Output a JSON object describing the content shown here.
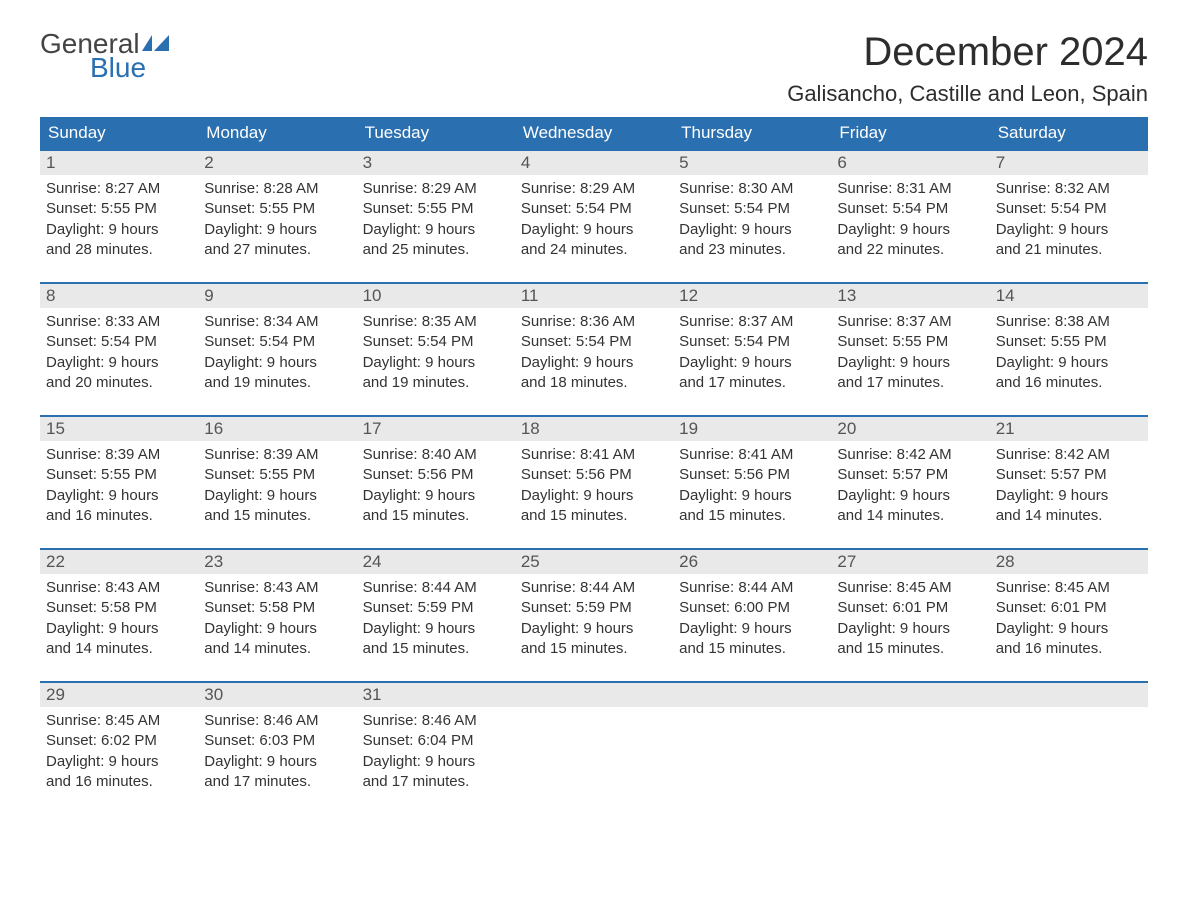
{
  "logo": {
    "word1": "General",
    "word2": "Blue"
  },
  "title": "December 2024",
  "location": "Galisancho, Castille and Leon, Spain",
  "colors": {
    "header_bg": "#2a6fb0",
    "header_text": "#ffffff",
    "daynum_bg": "#e9e9e9",
    "rule": "#2a6fb0",
    "text": "#333333",
    "logo_gray": "#444444",
    "logo_blue": "#2a6fb0"
  },
  "weekdays": [
    "Sunday",
    "Monday",
    "Tuesday",
    "Wednesday",
    "Thursday",
    "Friday",
    "Saturday"
  ],
  "label_sunrise": "Sunrise: ",
  "label_sunset": "Sunset: ",
  "label_daylight_prefix": "Daylight: ",
  "weeks": [
    [
      {
        "n": "1",
        "sunrise": "8:27 AM",
        "sunset": "5:55 PM",
        "dl1": "9 hours",
        "dl2": "and 28 minutes."
      },
      {
        "n": "2",
        "sunrise": "8:28 AM",
        "sunset": "5:55 PM",
        "dl1": "9 hours",
        "dl2": "and 27 minutes."
      },
      {
        "n": "3",
        "sunrise": "8:29 AM",
        "sunset": "5:55 PM",
        "dl1": "9 hours",
        "dl2": "and 25 minutes."
      },
      {
        "n": "4",
        "sunrise": "8:29 AM",
        "sunset": "5:54 PM",
        "dl1": "9 hours",
        "dl2": "and 24 minutes."
      },
      {
        "n": "5",
        "sunrise": "8:30 AM",
        "sunset": "5:54 PM",
        "dl1": "9 hours",
        "dl2": "and 23 minutes."
      },
      {
        "n": "6",
        "sunrise": "8:31 AM",
        "sunset": "5:54 PM",
        "dl1": "9 hours",
        "dl2": "and 22 minutes."
      },
      {
        "n": "7",
        "sunrise": "8:32 AM",
        "sunset": "5:54 PM",
        "dl1": "9 hours",
        "dl2": "and 21 minutes."
      }
    ],
    [
      {
        "n": "8",
        "sunrise": "8:33 AM",
        "sunset": "5:54 PM",
        "dl1": "9 hours",
        "dl2": "and 20 minutes."
      },
      {
        "n": "9",
        "sunrise": "8:34 AM",
        "sunset": "5:54 PM",
        "dl1": "9 hours",
        "dl2": "and 19 minutes."
      },
      {
        "n": "10",
        "sunrise": "8:35 AM",
        "sunset": "5:54 PM",
        "dl1": "9 hours",
        "dl2": "and 19 minutes."
      },
      {
        "n": "11",
        "sunrise": "8:36 AM",
        "sunset": "5:54 PM",
        "dl1": "9 hours",
        "dl2": "and 18 minutes."
      },
      {
        "n": "12",
        "sunrise": "8:37 AM",
        "sunset": "5:54 PM",
        "dl1": "9 hours",
        "dl2": "and 17 minutes."
      },
      {
        "n": "13",
        "sunrise": "8:37 AM",
        "sunset": "5:55 PM",
        "dl1": "9 hours",
        "dl2": "and 17 minutes."
      },
      {
        "n": "14",
        "sunrise": "8:38 AM",
        "sunset": "5:55 PM",
        "dl1": "9 hours",
        "dl2": "and 16 minutes."
      }
    ],
    [
      {
        "n": "15",
        "sunrise": "8:39 AM",
        "sunset": "5:55 PM",
        "dl1": "9 hours",
        "dl2": "and 16 minutes."
      },
      {
        "n": "16",
        "sunrise": "8:39 AM",
        "sunset": "5:55 PM",
        "dl1": "9 hours",
        "dl2": "and 15 minutes."
      },
      {
        "n": "17",
        "sunrise": "8:40 AM",
        "sunset": "5:56 PM",
        "dl1": "9 hours",
        "dl2": "and 15 minutes."
      },
      {
        "n": "18",
        "sunrise": "8:41 AM",
        "sunset": "5:56 PM",
        "dl1": "9 hours",
        "dl2": "and 15 minutes."
      },
      {
        "n": "19",
        "sunrise": "8:41 AM",
        "sunset": "5:56 PM",
        "dl1": "9 hours",
        "dl2": "and 15 minutes."
      },
      {
        "n": "20",
        "sunrise": "8:42 AM",
        "sunset": "5:57 PM",
        "dl1": "9 hours",
        "dl2": "and 14 minutes."
      },
      {
        "n": "21",
        "sunrise": "8:42 AM",
        "sunset": "5:57 PM",
        "dl1": "9 hours",
        "dl2": "and 14 minutes."
      }
    ],
    [
      {
        "n": "22",
        "sunrise": "8:43 AM",
        "sunset": "5:58 PM",
        "dl1": "9 hours",
        "dl2": "and 14 minutes."
      },
      {
        "n": "23",
        "sunrise": "8:43 AM",
        "sunset": "5:58 PM",
        "dl1": "9 hours",
        "dl2": "and 14 minutes."
      },
      {
        "n": "24",
        "sunrise": "8:44 AM",
        "sunset": "5:59 PM",
        "dl1": "9 hours",
        "dl2": "and 15 minutes."
      },
      {
        "n": "25",
        "sunrise": "8:44 AM",
        "sunset": "5:59 PM",
        "dl1": "9 hours",
        "dl2": "and 15 minutes."
      },
      {
        "n": "26",
        "sunrise": "8:44 AM",
        "sunset": "6:00 PM",
        "dl1": "9 hours",
        "dl2": "and 15 minutes."
      },
      {
        "n": "27",
        "sunrise": "8:45 AM",
        "sunset": "6:01 PM",
        "dl1": "9 hours",
        "dl2": "and 15 minutes."
      },
      {
        "n": "28",
        "sunrise": "8:45 AM",
        "sunset": "6:01 PM",
        "dl1": "9 hours",
        "dl2": "and 16 minutes."
      }
    ],
    [
      {
        "n": "29",
        "sunrise": "8:45 AM",
        "sunset": "6:02 PM",
        "dl1": "9 hours",
        "dl2": "and 16 minutes."
      },
      {
        "n": "30",
        "sunrise": "8:46 AM",
        "sunset": "6:03 PM",
        "dl1": "9 hours",
        "dl2": "and 17 minutes."
      },
      {
        "n": "31",
        "sunrise": "8:46 AM",
        "sunset": "6:04 PM",
        "dl1": "9 hours",
        "dl2": "and 17 minutes."
      },
      null,
      null,
      null,
      null
    ]
  ]
}
